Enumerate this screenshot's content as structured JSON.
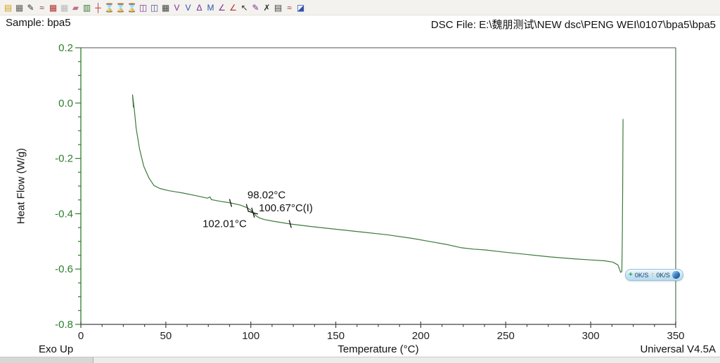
{
  "header": {
    "sample_label": "Sample: bpa5",
    "file_label": "DSC File: E:\\魏朋测试\\NEW dsc\\PENG WEI\\0107\\bpa5\\bpa5"
  },
  "toolbar": {
    "icons": [
      {
        "name": "open-file-icon",
        "glyph": "▤",
        "color": "#d4a017"
      },
      {
        "name": "print-icon",
        "glyph": "▦",
        "color": "#606060"
      },
      {
        "name": "annotate-pen-icon",
        "glyph": "✎",
        "color": "#303030"
      },
      {
        "name": "curve-pen-icon",
        "glyph": "≈",
        "color": "#803030"
      },
      {
        "name": "data-table-icon",
        "glyph": "▦",
        "color": "#b03030"
      },
      {
        "name": "data-table-disabled-icon",
        "glyph": "▦",
        "color": "#b8b8b8"
      },
      {
        "name": "eraser-icon",
        "glyph": "▰",
        "color": "#c07090"
      },
      {
        "name": "mini-plot-icon",
        "glyph": "▥",
        "color": "#3a7a3a"
      },
      {
        "name": "axes-icon",
        "glyph": "┼",
        "color": "#b03030"
      },
      {
        "name": "select-region-x-icon",
        "glyph": "⌛",
        "color": "#b03040"
      },
      {
        "name": "select-region-y-icon",
        "glyph": "⌛",
        "color": "#7a3090"
      },
      {
        "name": "tool-disabled-icon",
        "glyph": "⌛",
        "color": "#c0c0c0"
      },
      {
        "name": "split-window-icon",
        "glyph": "◫",
        "color": "#7a3090"
      },
      {
        "name": "split-window-2-icon",
        "glyph": "◫",
        "color": "#505090"
      },
      {
        "name": "matrix-icon",
        "glyph": "▦",
        "color": "#404040"
      },
      {
        "name": "integrate-peak-icon",
        "glyph": "V",
        "color": "#7a3090"
      },
      {
        "name": "peak-baseline-icon",
        "glyph": "V",
        "color": "#3050b0"
      },
      {
        "name": "step-transition-icon",
        "glyph": "Δ",
        "color": "#7a3090"
      },
      {
        "name": "multi-peak-icon",
        "glyph": "M",
        "color": "#3050b0"
      },
      {
        "name": "onset-tangent-icon",
        "glyph": "∠",
        "color": "#7a3090"
      },
      {
        "name": "endset-tangent-icon",
        "glyph": "∠",
        "color": "#b03030"
      },
      {
        "name": "pointer-icon",
        "glyph": "↖",
        "color": "#303030"
      },
      {
        "name": "slope-pen-icon",
        "glyph": "✎",
        "color": "#7a3090"
      },
      {
        "name": "delete-analysis-icon",
        "glyph": "✗",
        "color": "#303030"
      },
      {
        "name": "report-icon",
        "glyph": "▤",
        "color": "#404040"
      },
      {
        "name": "signature-icon",
        "glyph": "≈",
        "color": "#b03030"
      },
      {
        "name": "export-plot-icon",
        "glyph": "◪",
        "color": "#3050b0"
      }
    ]
  },
  "chart_data": {
    "type": "line",
    "xlabel": "Temperature (°C)",
    "ylabel": "Heat Flow (W/g)",
    "exo_label": "Exo Up",
    "version_label": "Universal V4.5A",
    "x_axis": {
      "min": 0,
      "max": 350,
      "major": 50,
      "minor": 12.5,
      "tick_labels": [
        "0",
        "50",
        "100",
        "150",
        "200",
        "250",
        "300",
        "350"
      ]
    },
    "y_axis": {
      "min": -0.8,
      "max": 0.2,
      "major": 0.2,
      "minor": 0.05,
      "tick_labels": [
        "0.2",
        "0.0",
        "-0.2",
        "-0.4",
        "-0.6",
        "-0.8"
      ]
    },
    "colors": {
      "curve": "#3c7a3c",
      "y_axis": "#2e7d2e",
      "x_axis": "#444444",
      "top_border": "#a8a8a8",
      "right_border": "#5a7f5a",
      "annotation": "#111111"
    },
    "series": [
      {
        "name": "bpa5",
        "points": [
          [
            30.9,
            -0.015
          ],
          [
            30.4,
            0.03
          ],
          [
            31.3,
            -0.015
          ],
          [
            32.5,
            -0.09
          ],
          [
            34.5,
            -0.165
          ],
          [
            37.0,
            -0.228
          ],
          [
            40.0,
            -0.27
          ],
          [
            43.0,
            -0.298
          ],
          [
            46.5,
            -0.309
          ],
          [
            52.0,
            -0.317
          ],
          [
            60.0,
            -0.325
          ],
          [
            68.0,
            -0.335
          ],
          [
            74.5,
            -0.344
          ],
          [
            76.0,
            -0.339
          ],
          [
            76.8,
            -0.349
          ],
          [
            82.0,
            -0.355
          ],
          [
            88.1,
            -0.361
          ],
          [
            94.0,
            -0.369
          ],
          [
            98.0,
            -0.379
          ],
          [
            100.0,
            -0.387
          ],
          [
            101.3,
            -0.396
          ],
          [
            103.0,
            -0.407
          ],
          [
            105.0,
            -0.415
          ],
          [
            108.0,
            -0.421
          ],
          [
            113.0,
            -0.427
          ],
          [
            123.2,
            -0.437
          ],
          [
            135.0,
            -0.446
          ],
          [
            150.0,
            -0.456
          ],
          [
            165.0,
            -0.466
          ],
          [
            180.0,
            -0.476
          ],
          [
            195.0,
            -0.489
          ],
          [
            205.0,
            -0.5
          ],
          [
            215.0,
            -0.511
          ],
          [
            224.0,
            -0.523
          ],
          [
            231.0,
            -0.528
          ],
          [
            238.0,
            -0.531
          ],
          [
            248.0,
            -0.538
          ],
          [
            262.0,
            -0.547
          ],
          [
            276.0,
            -0.556
          ],
          [
            290.0,
            -0.563
          ],
          [
            300.0,
            -0.567
          ],
          [
            308.0,
            -0.57
          ],
          [
            313.0,
            -0.575
          ],
          [
            316.0,
            -0.585
          ],
          [
            317.6,
            -0.612
          ],
          [
            318.3,
            -0.609
          ],
          [
            318.6,
            -0.48
          ],
          [
            318.8,
            -0.3
          ],
          [
            319.0,
            -0.059
          ]
        ]
      }
    ],
    "annotations": [
      {
        "text": "98.02°C",
        "t": 98.0,
        "hf": -0.345
      },
      {
        "text": "100.67°C(I)",
        "t": 104.7,
        "hf": -0.392
      },
      {
        "text": "102.01°C",
        "t": 71.6,
        "hf": -0.448
      }
    ],
    "markers": [
      {
        "type": "tick",
        "t": 88.1,
        "hf": -0.361
      },
      {
        "type": "tick",
        "t": 98.0,
        "hf": -0.379
      },
      {
        "type": "cross",
        "t": 101.3,
        "hf": -0.396
      },
      {
        "type": "tick",
        "t": 123.2,
        "hf": -0.437
      }
    ]
  },
  "overlay_widget": {
    "down_glyph": "+",
    "down_value": "0K/S",
    "up_glyph": "↑",
    "up_value": "0K/S"
  }
}
